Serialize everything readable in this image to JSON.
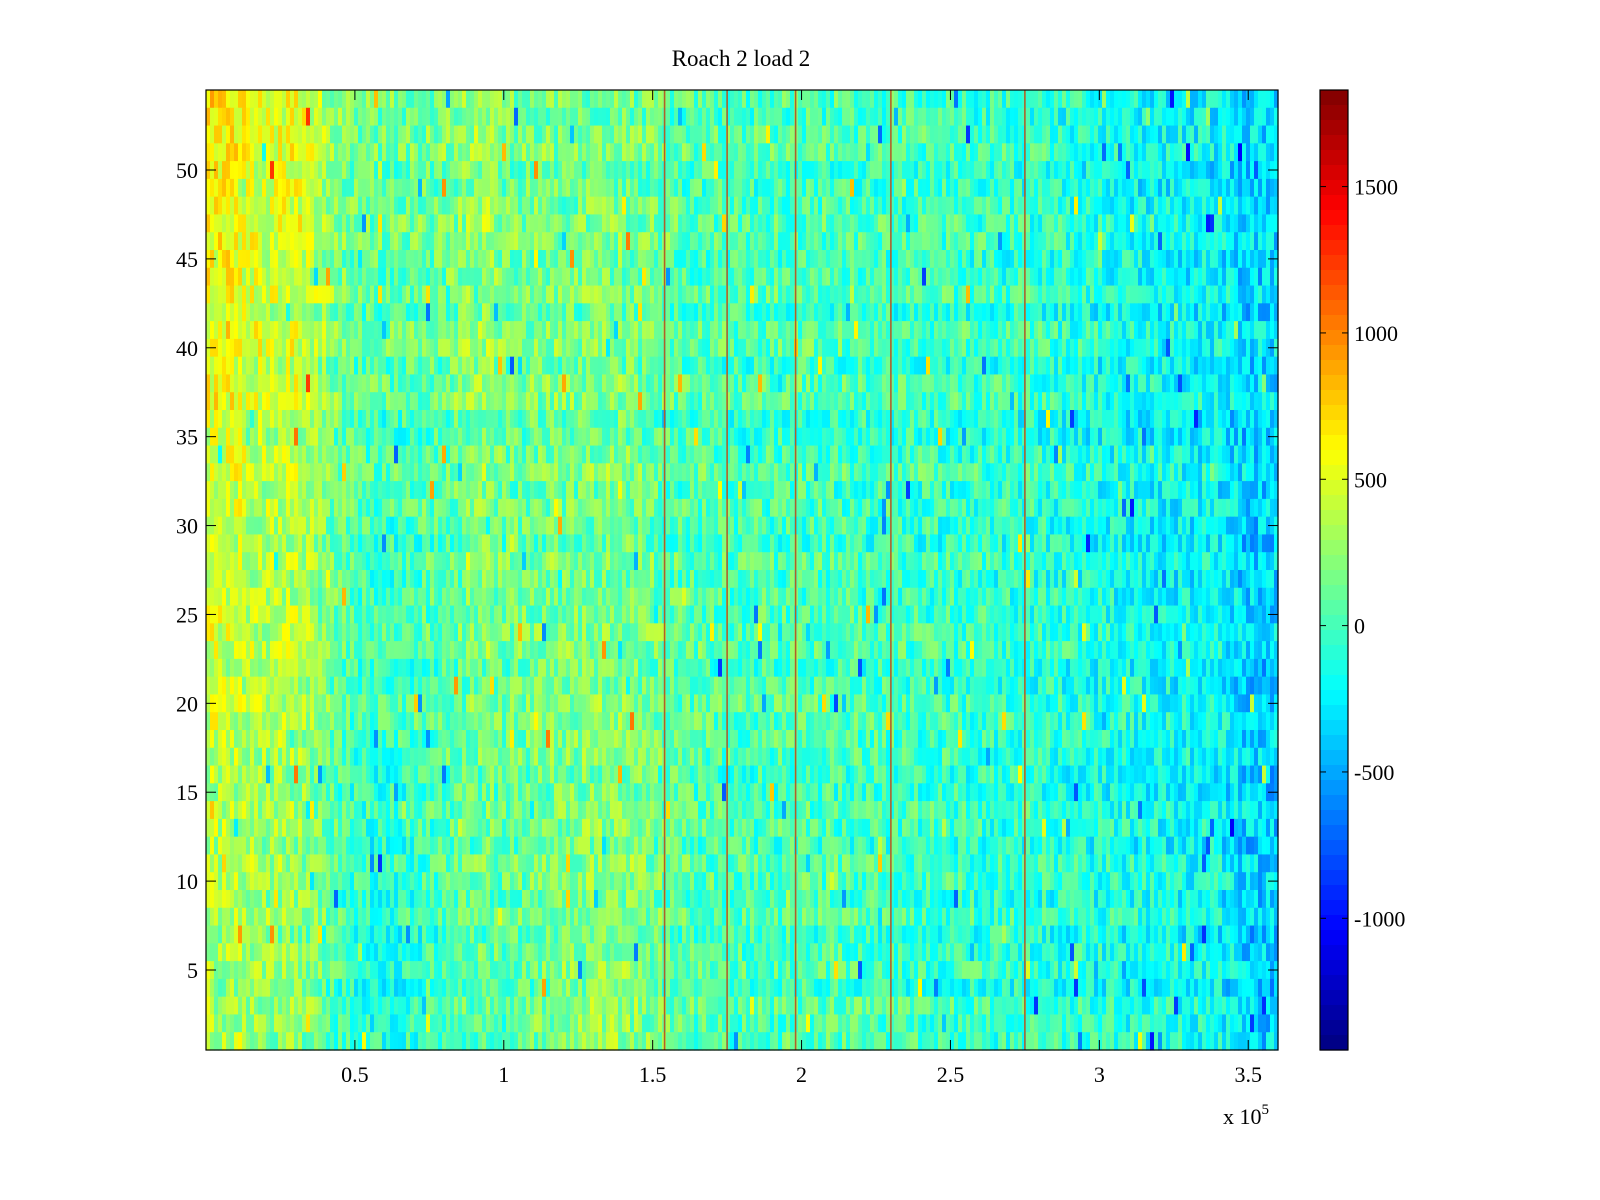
{
  "figure": {
    "title": "Roach 2 load 2",
    "x_exponent_label": "x 10",
    "x_exponent_power": "5"
  },
  "chart_data": {
    "type": "heatmap",
    "title": "Roach 2 load 2",
    "xlabel": "",
    "ylabel": "",
    "xlim": [
      0,
      3.6
    ],
    "x_scale_multiplier": 100000,
    "ylim": [
      0.5,
      54.5
    ],
    "x_ticks": [
      0.5,
      1,
      1.5,
      2,
      2.5,
      3,
      3.5
    ],
    "x_tick_labels": [
      "0.5",
      "1",
      "1.5",
      "2",
      "2.5",
      "3",
      "3.5"
    ],
    "y_ticks": [
      5,
      10,
      15,
      20,
      25,
      30,
      35,
      40,
      45,
      50
    ],
    "y_tick_labels": [
      "5",
      "10",
      "15",
      "20",
      "25",
      "30",
      "35",
      "40",
      "45",
      "50"
    ],
    "colormap": "jet",
    "color_limits": [
      -1450,
      1830
    ],
    "colorbar_ticks": [
      -1000,
      -500,
      0,
      500,
      1000,
      1500
    ],
    "colorbar_tick_labels": [
      "-1000",
      "-500",
      "0",
      "500",
      "1000",
      "1500"
    ],
    "rows": 54,
    "column_profile_x": [
      0.0,
      0.1,
      0.2,
      0.3,
      0.4,
      0.5,
      0.6,
      0.8,
      0.95,
      1.0,
      1.2,
      1.4,
      1.6,
      1.8,
      2.0,
      2.2,
      2.5,
      2.8,
      3.0,
      3.2,
      3.4,
      3.5,
      3.6
    ],
    "column_profile_top": [
      650,
      620,
      480,
      560,
      300,
      150,
      120,
      150,
      330,
      180,
      120,
      150,
      50,
      0,
      20,
      0,
      -40,
      -80,
      -150,
      -220,
      -250,
      -350,
      -350
    ],
    "column_profile_bottom": [
      280,
      250,
      200,
      200,
      80,
      -100,
      -150,
      0,
      80,
      30,
      200,
      230,
      60,
      20,
      20,
      0,
      -40,
      -80,
      -120,
      -150,
      -180,
      -380,
      -380
    ],
    "bright_vertical_lines_x": [
      1.54,
      1.75,
      1.98,
      2.3,
      2.75
    ],
    "gridlines": false,
    "legend": "none"
  },
  "colors": {
    "axis": "#000000",
    "background": "#ffffff"
  }
}
